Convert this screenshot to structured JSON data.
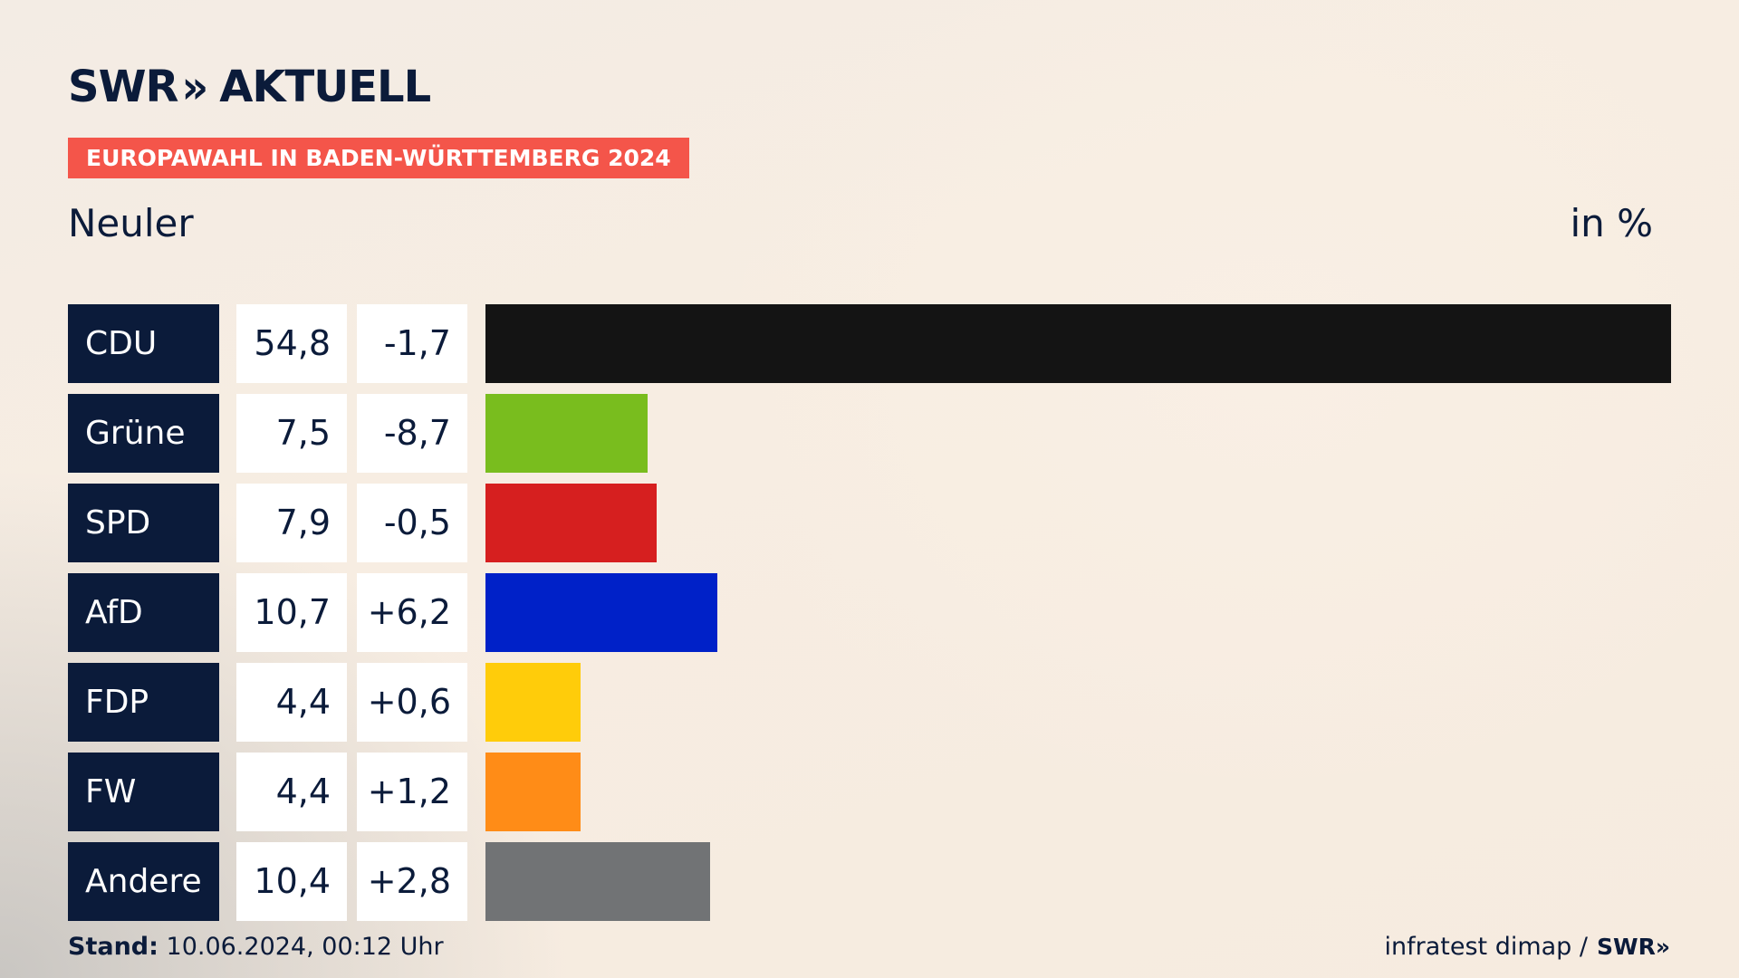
{
  "brand": {
    "logo_swr": "SWR",
    "logo_chevrons": "»",
    "logo_aktuell": "AKTUELL"
  },
  "header": {
    "badge": "EUROPAWAHL IN BADEN-WÜRTTEMBERG 2024",
    "region": "Neuler",
    "unit": "in %"
  },
  "colors": {
    "accent": "#f4554a",
    "navy": "#0b1b3a"
  },
  "chart_data": {
    "type": "bar",
    "orientation": "horizontal",
    "title": "EUROPAWAHL IN BADEN-WÜRTTEMBERG 2024",
    "categories": [
      "CDU",
      "Grüne",
      "SPD",
      "AfD",
      "FDP",
      "FW",
      "Andere"
    ],
    "values": [
      54.8,
      7.5,
      7.9,
      10.7,
      4.4,
      4.4,
      10.4
    ],
    "values_label": [
      "54,8",
      "7,5",
      "7,9",
      "10,7",
      "4,4",
      "4,4",
      "10,4"
    ],
    "changes": [
      -1.7,
      -8.7,
      -0.5,
      6.2,
      0.6,
      1.2,
      2.8
    ],
    "changes_label": [
      "-1,7",
      "-8,7",
      "-0,5",
      "+6,2",
      "+0,6",
      "+1,2",
      "+2,8"
    ],
    "bar_colors": [
      "#141414",
      "#79bd1e",
      "#d61f1f",
      "#0021c8",
      "#ffcc0a",
      "#ff8c17",
      "#717375"
    ],
    "xlim": [
      0,
      54.8
    ],
    "grid": false,
    "legend": "none"
  },
  "footer": {
    "stand_label": "Stand:",
    "stand_value": "10.06.2024, 00:12 Uhr",
    "source": "infratest dimap /",
    "source_logo": "SWR»"
  }
}
